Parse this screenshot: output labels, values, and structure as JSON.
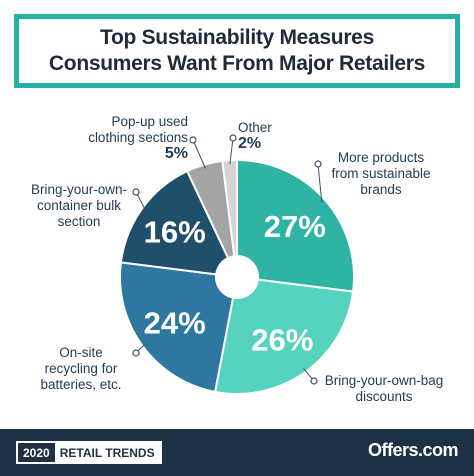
{
  "header": {
    "title_line1": "Top Sustainability Measures",
    "title_line2": "Consumers Want From Major Retailers"
  },
  "chart_data": {
    "type": "pie",
    "donut": true,
    "title": "Top Sustainability Measures Consumers Want From Major Retailers",
    "slices": [
      {
        "label": "More products from sustainable brands",
        "value": 27,
        "display": "27%",
        "color": "#2fb3a3"
      },
      {
        "label": "Bring-your-own-bag discounts",
        "value": 26,
        "display": "26%",
        "color": "#55d3bf"
      },
      {
        "label": "On-site recycling for batteries, etc.",
        "value": 24,
        "display": "24%",
        "color": "#2e77a0"
      },
      {
        "label": "Bring-your-own-container bulk section",
        "value": 16,
        "display": "16%",
        "color": "#1f4f6a"
      },
      {
        "label": "Pop-up used clothing sections",
        "value": 5,
        "display": "5%",
        "color": "#a4a4a4"
      },
      {
        "label": "Other",
        "value": 2,
        "display": "2%",
        "color": "#d4d4d4"
      }
    ],
    "start_angle_deg": 0,
    "direction": "clockwise"
  },
  "labels": {
    "more_products_l1": "More products",
    "more_products_l2": "from sustainable",
    "more_products_l3": "brands",
    "byo_bag_l1": "Bring-your-own-bag",
    "byo_bag_l2": "discounts",
    "onsite_l1": "On-site",
    "onsite_l2": "recycling for",
    "onsite_l3": "batteries, etc.",
    "byo_container_l1": "Bring-your-own-",
    "byo_container_l2": "container bulk",
    "byo_container_l3": "section",
    "popup_l1": "Pop-up used",
    "popup_l2": "clothing sections",
    "popup_pct": "5%",
    "other_l1": "Other",
    "other_pct": "2%"
  },
  "footer": {
    "year": "2020",
    "tag": "RETAIL TRENDS",
    "brand": "Offers.com"
  }
}
